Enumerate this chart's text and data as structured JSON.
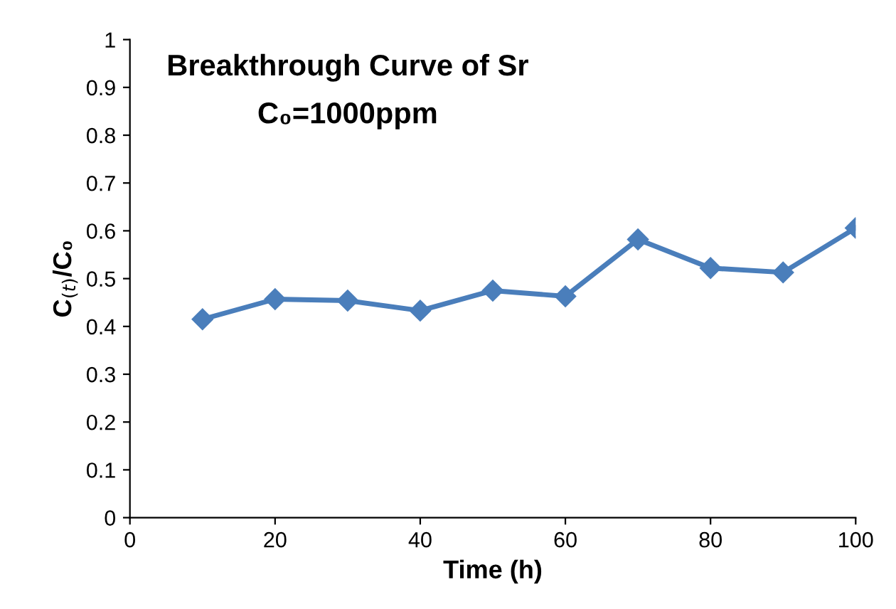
{
  "chart_data": {
    "type": "line",
    "title": "Breakthrough Curve of Sr",
    "subtitle": "C₀=1000ppm",
    "xlabel": "Time (h)",
    "ylabel": "C$_{(t)}$/C₀",
    "x": [
      10,
      20,
      30,
      40,
      50,
      60,
      70,
      80,
      90,
      100
    ],
    "series": [
      {
        "color": "#4a7ebb",
        "values": [
          0.415,
          0.457,
          0.454,
          0.433,
          0.475,
          0.463,
          0.582,
          0.522,
          0.513,
          0.606
        ]
      }
    ],
    "xlim": [
      0,
      100
    ],
    "xticks": [
      0,
      20,
      40,
      60,
      80,
      100
    ],
    "ylim": [
      0,
      1
    ],
    "yticks": [
      0,
      0.1,
      0.2,
      0.3,
      0.4,
      0.5,
      0.6,
      0.7,
      0.8,
      0.9,
      1
    ],
    "marker": "diamond",
    "line_style": "solid",
    "grid": false,
    "legend": false
  }
}
